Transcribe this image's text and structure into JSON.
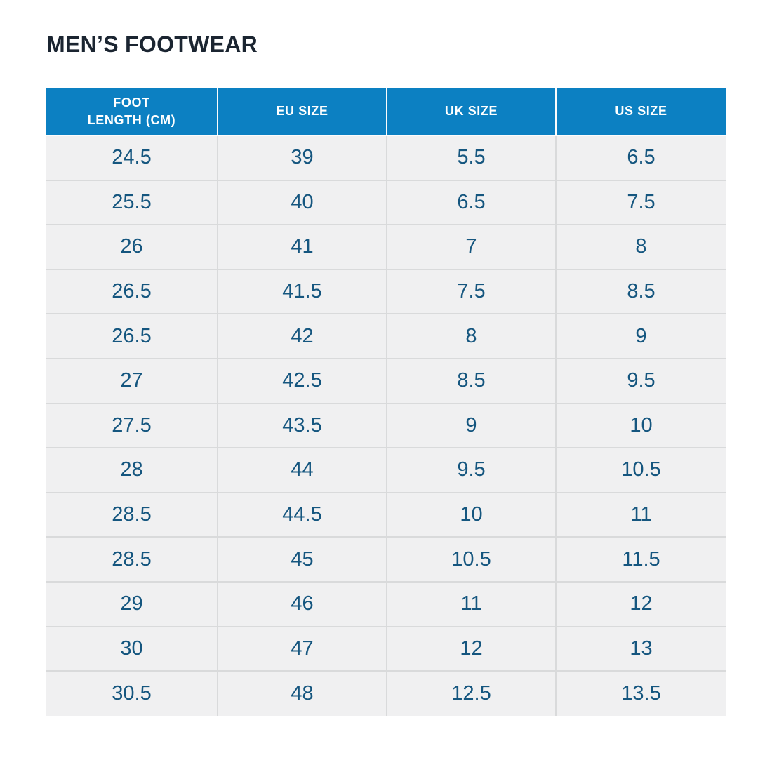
{
  "chart_data": {
    "type": "table",
    "title": "MEN’S FOOTWEAR",
    "columns": [
      {
        "label": "FOOT LENGTH (CM)",
        "lines": [
          "FOOT",
          "LENGTH (CM)"
        ]
      },
      {
        "label": "EU SIZE",
        "lines": [
          "EU SIZE"
        ]
      },
      {
        "label": "UK SIZE",
        "lines": [
          "UK SIZE"
        ]
      },
      {
        "label": "US SIZE",
        "lines": [
          "US SIZE"
        ]
      }
    ],
    "rows": [
      [
        "24.5",
        "39",
        "5.5",
        "6.5"
      ],
      [
        "25.5",
        "40",
        "6.5",
        "7.5"
      ],
      [
        "26",
        "41",
        "7",
        "8"
      ],
      [
        "26.5",
        "41.5",
        "7.5",
        "8.5"
      ],
      [
        "26.5",
        "42",
        "8",
        "9"
      ],
      [
        "27",
        "42.5",
        "8.5",
        "9.5"
      ],
      [
        "27.5",
        "43.5",
        "9",
        "10"
      ],
      [
        "28",
        "44",
        "9.5",
        "10.5"
      ],
      [
        "28.5",
        "44.5",
        "10",
        "11"
      ],
      [
        "28.5",
        "45",
        "10.5",
        "11.5"
      ],
      [
        "29",
        "46",
        "11",
        "12"
      ],
      [
        "30",
        "47",
        "12",
        "13"
      ],
      [
        "30.5",
        "48",
        "12.5",
        "13.5"
      ]
    ]
  },
  "colors": {
    "page_bg": "#ffffff",
    "title_text": "#1b2531",
    "header_bg": "#0c80c2",
    "header_text": "#ffffff",
    "header_divider": "#fcfcfc",
    "cell_bg": "#f0f0f1",
    "cell_text": "#15567f",
    "row_divider": "#d9dadb"
  }
}
